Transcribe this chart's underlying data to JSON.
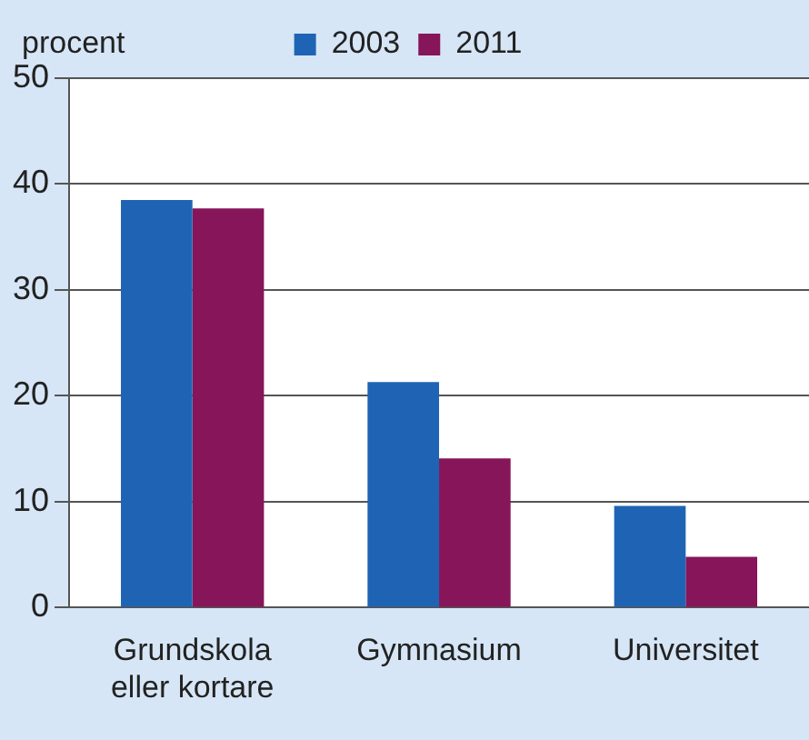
{
  "chart_data": {
    "type": "bar",
    "ylabel": "procent",
    "categories": [
      "Grundskola eller kortare",
      "Gymnasium",
      "Universitet"
    ],
    "series": [
      {
        "name": "2003",
        "color": "#1f64b4",
        "values": [
          38.5,
          21.3,
          9.6
        ]
      },
      {
        "name": "2011",
        "color": "#86155a",
        "values": [
          37.7,
          14.1,
          4.8
        ]
      }
    ],
    "ylim": [
      0,
      50
    ],
    "yticks": [
      0,
      10,
      20,
      30,
      40,
      50
    ],
    "grid": "y",
    "legend": "top"
  }
}
